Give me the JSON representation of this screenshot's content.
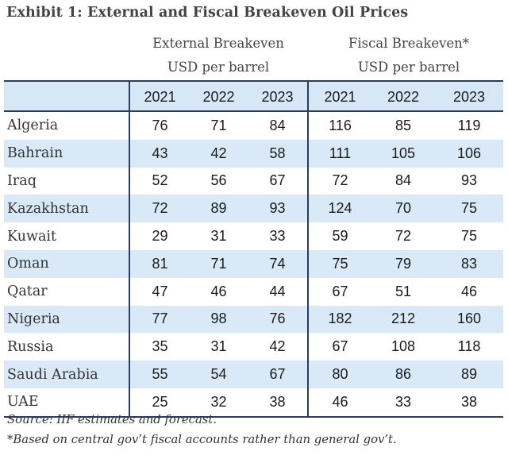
{
  "title": "Exhibit 1: External and Fiscal Breakeven Oil Prices",
  "groups": {
    "external": {
      "line1": "External Breakeven",
      "line2": "USD per barrel"
    },
    "fiscal": {
      "line1": "Fiscal Breakeven*",
      "line2": "USD per barrel"
    }
  },
  "years": [
    "2021",
    "2022",
    "2023"
  ],
  "rows": [
    {
      "country": "Algeria",
      "external": [
        "76",
        "71",
        "84"
      ],
      "fiscal": [
        "116",
        "85",
        "119"
      ]
    },
    {
      "country": "Bahrain",
      "external": [
        "43",
        "42",
        "58"
      ],
      "fiscal": [
        "111",
        "105",
        "106"
      ]
    },
    {
      "country": "Iraq",
      "external": [
        "52",
        "56",
        "67"
      ],
      "fiscal": [
        "72",
        "84",
        "93"
      ]
    },
    {
      "country": "Kazakhstan",
      "external": [
        "72",
        "89",
        "93"
      ],
      "fiscal": [
        "124",
        "70",
        "75"
      ]
    },
    {
      "country": "Kuwait",
      "external": [
        "29",
        "31",
        "33"
      ],
      "fiscal": [
        "59",
        "72",
        "75"
      ]
    },
    {
      "country": "Oman",
      "external": [
        "81",
        "71",
        "74"
      ],
      "fiscal": [
        "75",
        "79",
        "83"
      ]
    },
    {
      "country": "Qatar",
      "external": [
        "47",
        "46",
        "44"
      ],
      "fiscal": [
        "67",
        "51",
        "46"
      ]
    },
    {
      "country": "Nigeria",
      "external": [
        "77",
        "98",
        "76"
      ],
      "fiscal": [
        "182",
        "212",
        "160"
      ]
    },
    {
      "country": "Russia",
      "external": [
        "35",
        "31",
        "42"
      ],
      "fiscal": [
        "67",
        "108",
        "118"
      ]
    },
    {
      "country": "Saudi Arabia",
      "external": [
        "55",
        "54",
        "67"
      ],
      "fiscal": [
        "80",
        "86",
        "89"
      ]
    },
    {
      "country": "UAE",
      "external": [
        "25",
        "32",
        "38"
      ],
      "fiscal": [
        "46",
        "33",
        "38"
      ]
    }
  ],
  "notes": {
    "source": "Source: IIF estimates and forecast.",
    "footnote": "*Based on central gov’t fiscal accounts rather than general gov’t."
  }
}
